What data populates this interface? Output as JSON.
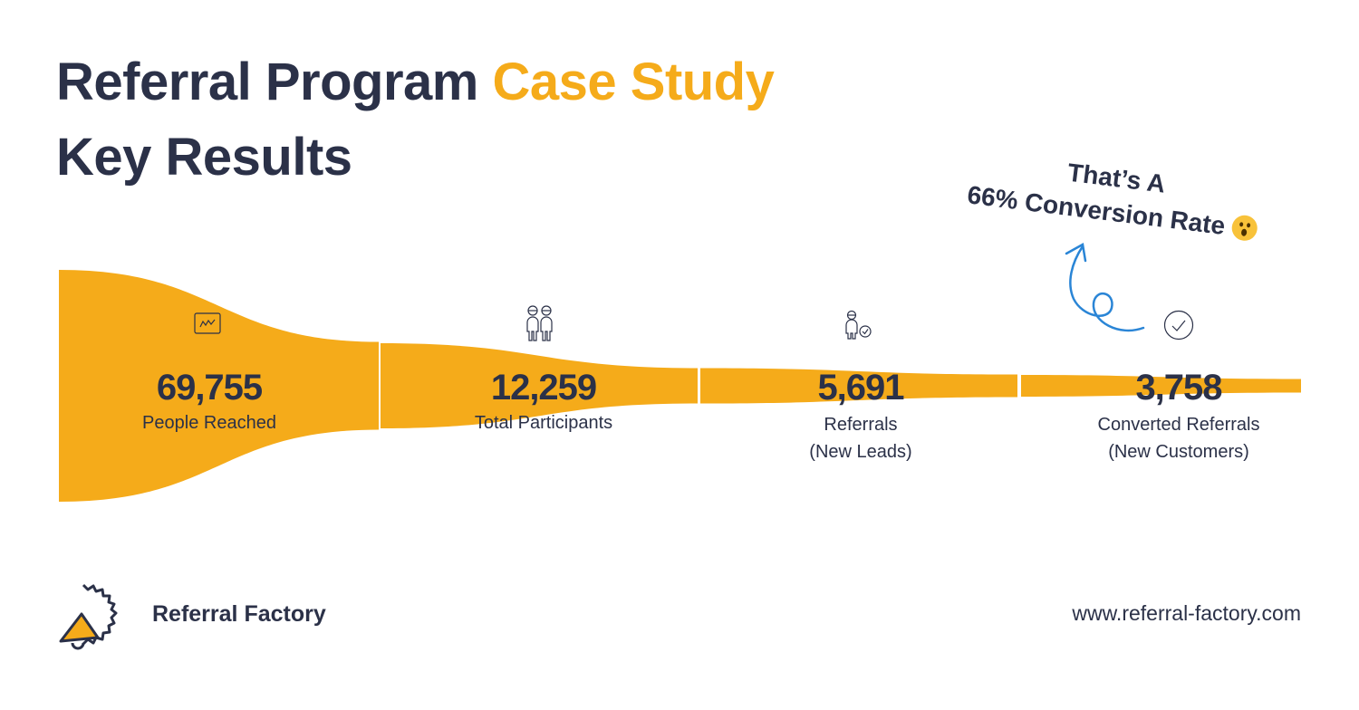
{
  "header": {
    "title_part1": "Referral Program ",
    "title_accent": "Case Study",
    "subtitle": "Key Results"
  },
  "colors": {
    "funnel": "#f5ab1a",
    "text": "#2b3148",
    "arrow": "#2a85d6"
  },
  "chart_data": {
    "type": "funnel",
    "stages": [
      {
        "value": "69,755",
        "label": "People Reached",
        "label2": "",
        "icon": "chart-icon"
      },
      {
        "value": "12,259",
        "label": "Total Participants",
        "label2": "",
        "icon": "people-icon"
      },
      {
        "value": "5,691",
        "label": "Referrals",
        "label2": "(New Leads)",
        "icon": "person-check-icon"
      },
      {
        "value": "3,758",
        "label": "Converted Referrals",
        "label2": "(New Customers)",
        "icon": "check-circle-icon"
      }
    ],
    "values": [
      69755,
      12259,
      5691,
      3758
    ]
  },
  "annotation": {
    "line1": "That’s A",
    "line2": "66% Conversion Rate",
    "emoji": "astonished-face"
  },
  "footer": {
    "brand": "Referral Factory",
    "url": "www.referral-factory.com"
  }
}
